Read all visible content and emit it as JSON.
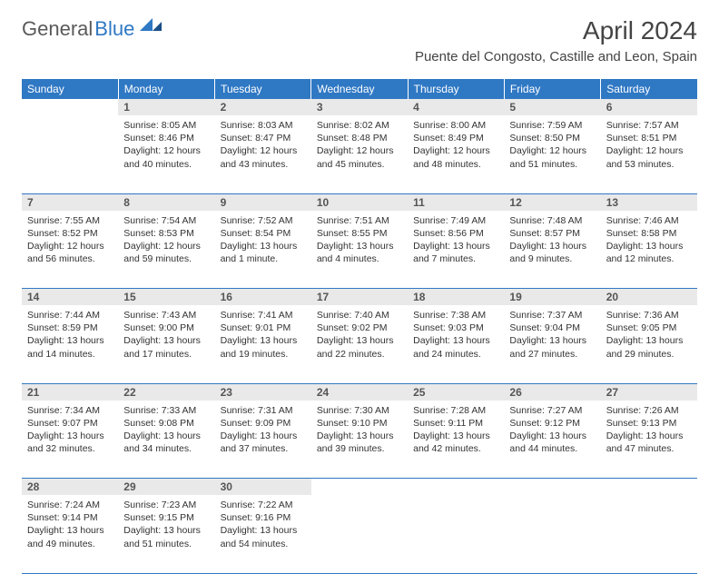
{
  "logo": {
    "text1": "General",
    "text2": "Blue"
  },
  "title": "April 2024",
  "location": "Puente del Congosto, Castille and Leon, Spain",
  "colors": {
    "header_bg": "#2f78c4",
    "header_text": "#ffffff",
    "daynum_bg": "#e9e9e9",
    "border": "#2f78c4",
    "logo_gray": "#5a5a5a",
    "logo_blue": "#2f78c4"
  },
  "day_headers": [
    "Sunday",
    "Monday",
    "Tuesday",
    "Wednesday",
    "Thursday",
    "Friday",
    "Saturday"
  ],
  "weeks": [
    {
      "nums": [
        "",
        "1",
        "2",
        "3",
        "4",
        "5",
        "6"
      ],
      "cells": [
        null,
        {
          "sunrise": "8:05 AM",
          "sunset": "8:46 PM",
          "daylight": "12 hours and 40 minutes."
        },
        {
          "sunrise": "8:03 AM",
          "sunset": "8:47 PM",
          "daylight": "12 hours and 43 minutes."
        },
        {
          "sunrise": "8:02 AM",
          "sunset": "8:48 PM",
          "daylight": "12 hours and 45 minutes."
        },
        {
          "sunrise": "8:00 AM",
          "sunset": "8:49 PM",
          "daylight": "12 hours and 48 minutes."
        },
        {
          "sunrise": "7:59 AM",
          "sunset": "8:50 PM",
          "daylight": "12 hours and 51 minutes."
        },
        {
          "sunrise": "7:57 AM",
          "sunset": "8:51 PM",
          "daylight": "12 hours and 53 minutes."
        }
      ]
    },
    {
      "nums": [
        "7",
        "8",
        "9",
        "10",
        "11",
        "12",
        "13"
      ],
      "cells": [
        {
          "sunrise": "7:55 AM",
          "sunset": "8:52 PM",
          "daylight": "12 hours and 56 minutes."
        },
        {
          "sunrise": "7:54 AM",
          "sunset": "8:53 PM",
          "daylight": "12 hours and 59 minutes."
        },
        {
          "sunrise": "7:52 AM",
          "sunset": "8:54 PM",
          "daylight": "13 hours and 1 minute."
        },
        {
          "sunrise": "7:51 AM",
          "sunset": "8:55 PM",
          "daylight": "13 hours and 4 minutes."
        },
        {
          "sunrise": "7:49 AM",
          "sunset": "8:56 PM",
          "daylight": "13 hours and 7 minutes."
        },
        {
          "sunrise": "7:48 AM",
          "sunset": "8:57 PM",
          "daylight": "13 hours and 9 minutes."
        },
        {
          "sunrise": "7:46 AM",
          "sunset": "8:58 PM",
          "daylight": "13 hours and 12 minutes."
        }
      ]
    },
    {
      "nums": [
        "14",
        "15",
        "16",
        "17",
        "18",
        "19",
        "20"
      ],
      "cells": [
        {
          "sunrise": "7:44 AM",
          "sunset": "8:59 PM",
          "daylight": "13 hours and 14 minutes."
        },
        {
          "sunrise": "7:43 AM",
          "sunset": "9:00 PM",
          "daylight": "13 hours and 17 minutes."
        },
        {
          "sunrise": "7:41 AM",
          "sunset": "9:01 PM",
          "daylight": "13 hours and 19 minutes."
        },
        {
          "sunrise": "7:40 AM",
          "sunset": "9:02 PM",
          "daylight": "13 hours and 22 minutes."
        },
        {
          "sunrise": "7:38 AM",
          "sunset": "9:03 PM",
          "daylight": "13 hours and 24 minutes."
        },
        {
          "sunrise": "7:37 AM",
          "sunset": "9:04 PM",
          "daylight": "13 hours and 27 minutes."
        },
        {
          "sunrise": "7:36 AM",
          "sunset": "9:05 PM",
          "daylight": "13 hours and 29 minutes."
        }
      ]
    },
    {
      "nums": [
        "21",
        "22",
        "23",
        "24",
        "25",
        "26",
        "27"
      ],
      "cells": [
        {
          "sunrise": "7:34 AM",
          "sunset": "9:07 PM",
          "daylight": "13 hours and 32 minutes."
        },
        {
          "sunrise": "7:33 AM",
          "sunset": "9:08 PM",
          "daylight": "13 hours and 34 minutes."
        },
        {
          "sunrise": "7:31 AM",
          "sunset": "9:09 PM",
          "daylight": "13 hours and 37 minutes."
        },
        {
          "sunrise": "7:30 AM",
          "sunset": "9:10 PM",
          "daylight": "13 hours and 39 minutes."
        },
        {
          "sunrise": "7:28 AM",
          "sunset": "9:11 PM",
          "daylight": "13 hours and 42 minutes."
        },
        {
          "sunrise": "7:27 AM",
          "sunset": "9:12 PM",
          "daylight": "13 hours and 44 minutes."
        },
        {
          "sunrise": "7:26 AM",
          "sunset": "9:13 PM",
          "daylight": "13 hours and 47 minutes."
        }
      ]
    },
    {
      "nums": [
        "28",
        "29",
        "30",
        "",
        "",
        "",
        ""
      ],
      "cells": [
        {
          "sunrise": "7:24 AM",
          "sunset": "9:14 PM",
          "daylight": "13 hours and 49 minutes."
        },
        {
          "sunrise": "7:23 AM",
          "sunset": "9:15 PM",
          "daylight": "13 hours and 51 minutes."
        },
        {
          "sunrise": "7:22 AM",
          "sunset": "9:16 PM",
          "daylight": "13 hours and 54 minutes."
        },
        null,
        null,
        null,
        null
      ]
    }
  ],
  "labels": {
    "sunrise": "Sunrise:",
    "sunset": "Sunset:",
    "daylight": "Daylight:"
  }
}
